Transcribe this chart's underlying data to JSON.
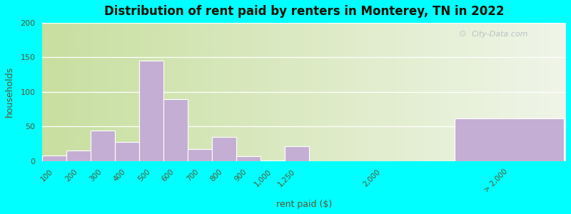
{
  "title": "Distribution of rent paid by renters in Monterey, TN in 2022",
  "xlabel": "rent paid ($)",
  "ylabel": "households",
  "bar_color": "#C4AED4",
  "background_color": "#00FFFF",
  "ylim": [
    0,
    200
  ],
  "yticks": [
    0,
    50,
    100,
    150,
    200
  ],
  "categories": [
    "100",
    "200",
    "300",
    "400",
    "500",
    "600",
    "700",
    "800",
    "900",
    "1,000",
    "1,250",
    "2,000",
    "> 2,000"
  ],
  "values": [
    8,
    15,
    44,
    27,
    145,
    89,
    17,
    35,
    7,
    1,
    21,
    0,
    62
  ],
  "watermark": "City-Data.com",
  "title_fontsize": 12,
  "axis_label_fontsize": 9,
  "tick_fontsize": 7.5
}
